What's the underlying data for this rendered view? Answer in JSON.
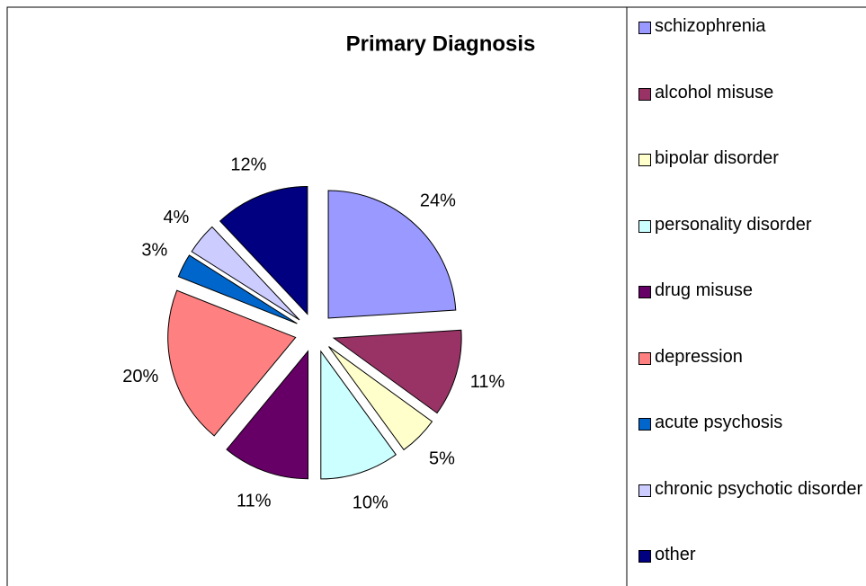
{
  "chart_data": {
    "type": "pie",
    "title": "Primary Diagnosis",
    "categories": [
      "schizophrenia",
      "alcohol misuse",
      "bipolar disorder",
      "personality disorder",
      "drug misuse",
      "depression",
      "acute psychosis",
      "chronic psychotic disorder",
      "other"
    ],
    "values": [
      24,
      11,
      5,
      10,
      11,
      20,
      3,
      4,
      12
    ],
    "value_labels": [
      "24%",
      "11%",
      "5%",
      "10%",
      "11%",
      "20%",
      "3%",
      "4%",
      "12%"
    ],
    "colors": [
      "#9999ff",
      "#993366",
      "#ffffcc",
      "#ccffff",
      "#660066",
      "#ff8080",
      "#0066cc",
      "#ccccff",
      "#000080"
    ],
    "legend": "right"
  }
}
